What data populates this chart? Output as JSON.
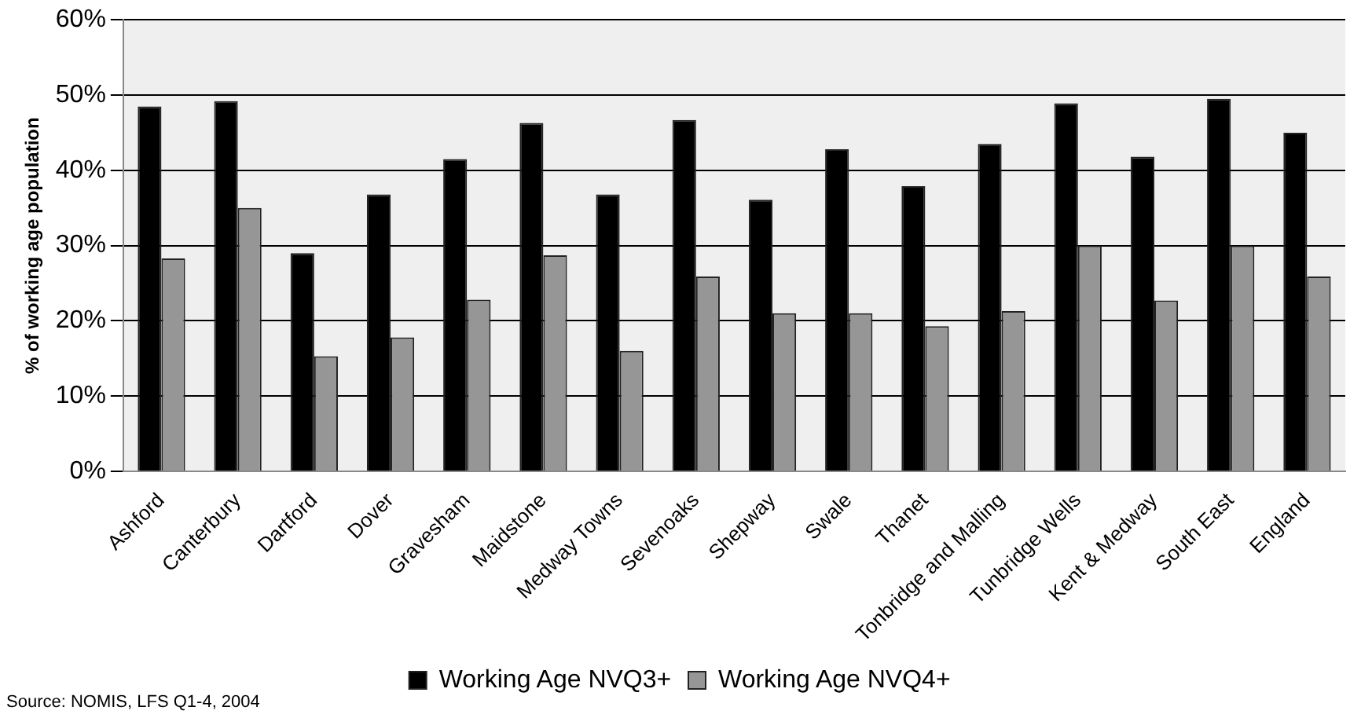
{
  "chart_data": {
    "type": "bar",
    "ylabel": "% of working age population",
    "categories": [
      "Ashford",
      "Canterbury",
      "Dartford",
      "Dover",
      "Gravesham",
      "Maidstone",
      "Medway Towns",
      "Sevenoaks",
      "Shepway",
      "Swale",
      "Thanet",
      "Tonbridge and Malling",
      "Tunbridge Wells",
      "Kent & Medway",
      "South East",
      "England"
    ],
    "series": [
      {
        "name": "Working Age NVQ3+",
        "color": "#000000",
        "values": [
          48.5,
          49.2,
          29,
          36.8,
          41.5,
          46.3,
          36.8,
          46.7,
          36.1,
          42.8,
          37.9,
          43.5,
          48.9,
          41.8,
          49.5,
          45
        ]
      },
      {
        "name": "Working Age NVQ4+",
        "color": "#969696",
        "values": [
          28.3,
          35,
          15.3,
          17.8,
          22.8,
          28.7,
          16,
          25.9,
          21,
          21,
          19.3,
          21.3,
          30,
          22.7,
          30,
          25.9
        ]
      }
    ],
    "ylim": [
      0,
      60
    ],
    "yticks": [
      {
        "value": 0,
        "label": "0%"
      },
      {
        "value": 10,
        "label": "10%"
      },
      {
        "value": 20,
        "label": "20%"
      },
      {
        "value": 30,
        "label": "30%"
      },
      {
        "value": 40,
        "label": "40%"
      },
      {
        "value": 50,
        "label": "50%"
      },
      {
        "value": 60,
        "label": "60%"
      }
    ],
    "grid": "y",
    "legend": "bottom",
    "annotations": [
      "Source: NOMIS, LFS Q1-4, 2004"
    ]
  }
}
